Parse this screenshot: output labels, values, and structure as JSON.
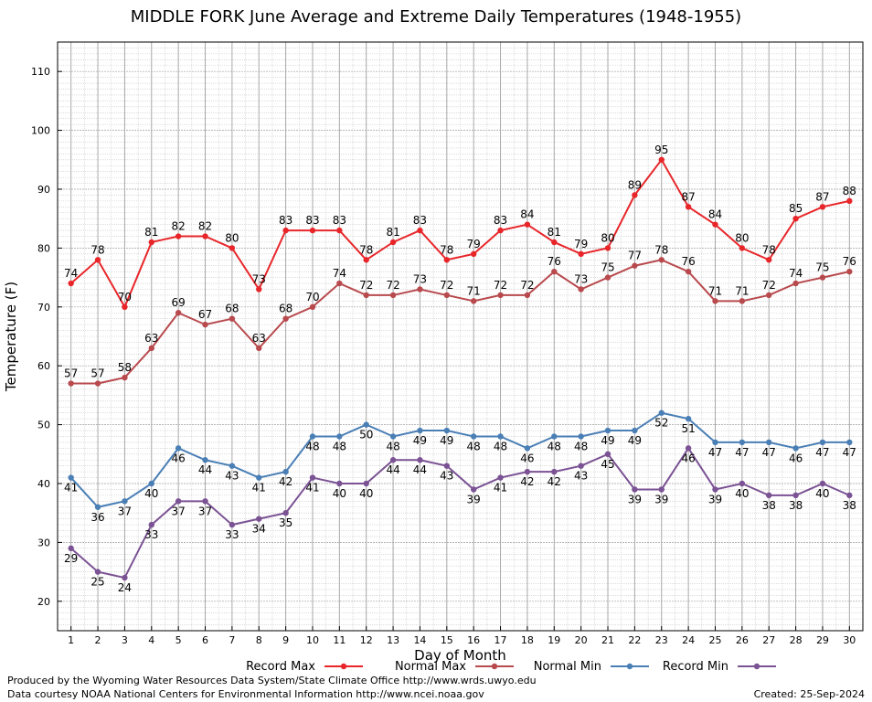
{
  "chart_data": {
    "type": "line",
    "title": "MIDDLE FORK June Average and Extreme Daily Temperatures (1948-1955)",
    "xlabel": "Day of Month",
    "ylabel": "Temperature (F)",
    "x": [
      1,
      2,
      3,
      4,
      5,
      6,
      7,
      8,
      9,
      10,
      11,
      12,
      13,
      14,
      15,
      16,
      17,
      18,
      19,
      20,
      21,
      22,
      23,
      24,
      25,
      26,
      27,
      28,
      29,
      30
    ],
    "xlim": [
      0.5,
      30.5
    ],
    "ylim": [
      15,
      115
    ],
    "yticks": [
      20,
      30,
      40,
      50,
      60,
      70,
      80,
      90,
      100,
      110
    ],
    "grid": true,
    "legend": "bottom",
    "series": [
      {
        "name": "Record Max",
        "color": "#e8262a",
        "values": [
          74,
          78,
          70,
          81,
          82,
          82,
          80,
          73,
          83,
          83,
          83,
          78,
          81,
          83,
          78,
          79,
          83,
          84,
          81,
          79,
          80,
          89,
          95,
          87,
          84,
          80,
          78,
          85,
          87,
          88
        ]
      },
      {
        "name": "Normal Max",
        "color": "#b84a4e",
        "values": [
          57,
          57,
          58,
          63,
          69,
          67,
          68,
          63,
          68,
          70,
          74,
          72,
          72,
          73,
          72,
          71,
          72,
          72,
          76,
          73,
          75,
          77,
          78,
          76,
          71,
          71,
          72,
          74,
          75,
          76
        ]
      },
      {
        "name": "Normal Min",
        "color": "#4a7fb5",
        "values": [
          41,
          36,
          37,
          40,
          46,
          44,
          43,
          41,
          42,
          48,
          48,
          50,
          48,
          49,
          49,
          48,
          48,
          46,
          48,
          48,
          49,
          49,
          52,
          51,
          47,
          47,
          47,
          46,
          47,
          47
        ]
      },
      {
        "name": "Record Min",
        "color": "#7b5294",
        "values": [
          29,
          25,
          24,
          33,
          37,
          37,
          33,
          34,
          35,
          41,
          40,
          40,
          44,
          44,
          43,
          39,
          41,
          42,
          42,
          43,
          45,
          39,
          39,
          46,
          39,
          40,
          38,
          38,
          40,
          38
        ]
      }
    ]
  },
  "footer": {
    "credit1": "Produced by the Wyoming Water Resources Data System/State Climate Office http://www.wrds.uwyo.edu",
    "credit2": "Data courtesy NOAA National Centers for Environmental Information http://www.ncei.noaa.gov",
    "created": "Created:  25-Sep-2024"
  }
}
